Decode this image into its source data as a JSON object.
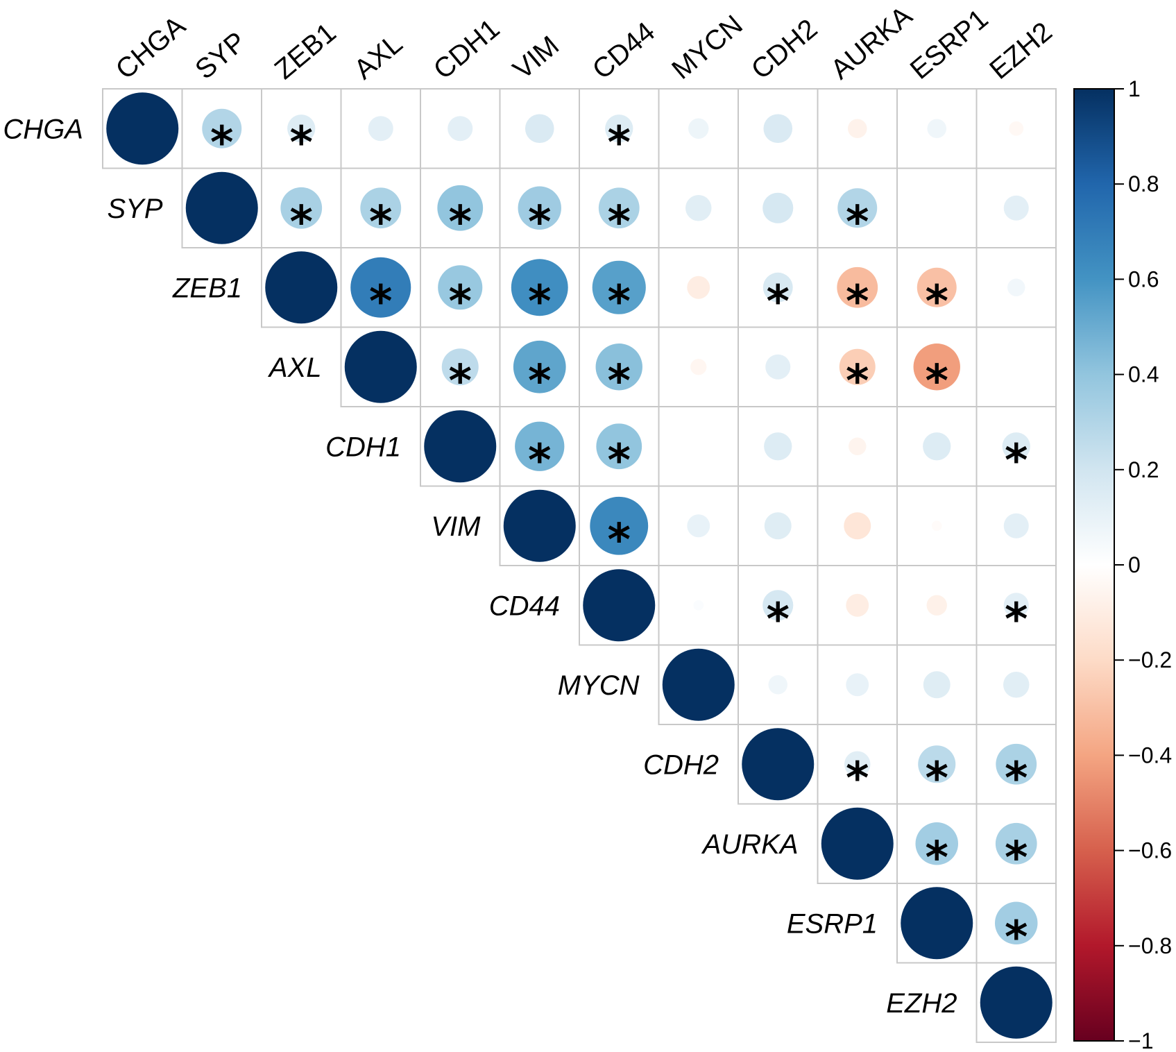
{
  "chart_data": {
    "type": "heatmap",
    "subtype": "correlation-matrix-upper-circles",
    "variables": [
      "CHGA",
      "SYP",
      "ZEB1",
      "AXL",
      "CDH1",
      "VIM",
      "CD44",
      "MYCN",
      "CDH2",
      "AURKA",
      "ESRP1",
      "EZH2"
    ],
    "correlations": [
      [
        1,
        0.3,
        0.15,
        0.12,
        0.12,
        0.16,
        0.15,
        0.08,
        0.16,
        -0.07,
        0.07,
        -0.04
      ],
      [
        null,
        1,
        0.33,
        0.32,
        0.4,
        0.36,
        0.32,
        0.13,
        0.18,
        0.3,
        0,
        0.12
      ],
      [
        null,
        null,
        1,
        0.7,
        0.38,
        0.62,
        0.55,
        -0.1,
        0.17,
        -0.32,
        -0.3,
        0.06
      ],
      [
        null,
        null,
        null,
        1,
        0.26,
        0.53,
        0.42,
        -0.05,
        0.12,
        -0.25,
        -0.42,
        0
      ],
      [
        null,
        null,
        null,
        null,
        1,
        0.47,
        0.4,
        0,
        0.15,
        -0.06,
        0.15,
        0.15
      ],
      [
        null,
        null,
        null,
        null,
        null,
        1,
        0.65,
        0.1,
        0.14,
        -0.14,
        -0.02,
        0.12
      ],
      [
        null,
        null,
        null,
        null,
        null,
        null,
        1,
        0.02,
        0.18,
        -0.1,
        -0.08,
        0.12
      ],
      [
        null,
        null,
        null,
        null,
        null,
        null,
        null,
        1,
        0.07,
        0.1,
        0.14,
        0.13
      ],
      [
        null,
        null,
        null,
        null,
        null,
        null,
        null,
        null,
        1,
        0.13,
        0.27,
        0.32
      ],
      [
        null,
        null,
        null,
        null,
        null,
        null,
        null,
        null,
        null,
        1,
        0.35,
        0.33
      ],
      [
        null,
        null,
        null,
        null,
        null,
        null,
        null,
        null,
        null,
        null,
        1,
        0.35
      ],
      [
        null,
        null,
        null,
        null,
        null,
        null,
        null,
        null,
        null,
        null,
        null,
        1
      ]
    ],
    "significant": [
      [
        false,
        true,
        true,
        false,
        false,
        false,
        true,
        false,
        false,
        false,
        false,
        false
      ],
      [
        false,
        false,
        true,
        true,
        true,
        true,
        true,
        false,
        false,
        true,
        false,
        false
      ],
      [
        false,
        false,
        false,
        true,
        true,
        true,
        true,
        false,
        true,
        true,
        true,
        false
      ],
      [
        false,
        false,
        false,
        false,
        true,
        true,
        true,
        false,
        false,
        true,
        true,
        false
      ],
      [
        false,
        false,
        false,
        false,
        false,
        true,
        true,
        false,
        false,
        false,
        false,
        true
      ],
      [
        false,
        false,
        false,
        false,
        false,
        false,
        true,
        false,
        false,
        false,
        false,
        false
      ],
      [
        false,
        false,
        false,
        false,
        false,
        false,
        false,
        false,
        true,
        false,
        false,
        true
      ],
      [
        false,
        false,
        false,
        false,
        false,
        false,
        false,
        false,
        false,
        false,
        false,
        false
      ],
      [
        false,
        false,
        false,
        false,
        false,
        false,
        false,
        false,
        false,
        true,
        true,
        true
      ],
      [
        false,
        false,
        false,
        false,
        false,
        false,
        false,
        false,
        false,
        false,
        true,
        true
      ],
      [
        false,
        false,
        false,
        false,
        false,
        false,
        false,
        false,
        false,
        false,
        false,
        true
      ],
      [
        false,
        false,
        false,
        false,
        false,
        false,
        false,
        false,
        false,
        false,
        false,
        false
      ]
    ],
    "significance_marker": "*",
    "colorbar": {
      "range": [
        -1,
        1
      ],
      "ticks": [
        "1",
        "0.8",
        "0.6",
        "0.4",
        "0.2",
        "0",
        "−0.2",
        "−0.4",
        "−0.6",
        "−0.8",
        "−1"
      ],
      "tick_values": [
        1,
        0.8,
        0.6,
        0.4,
        0.2,
        0,
        -0.2,
        -0.4,
        -0.6,
        -0.8,
        -1
      ],
      "colors": [
        "#67001F",
        "#B2182B",
        "#D6604D",
        "#F4A582",
        "#FDDBC7",
        "#FFFFFF",
        "#D1E5F0",
        "#92C5DE",
        "#4393C3",
        "#2166AC",
        "#053061"
      ]
    }
  }
}
